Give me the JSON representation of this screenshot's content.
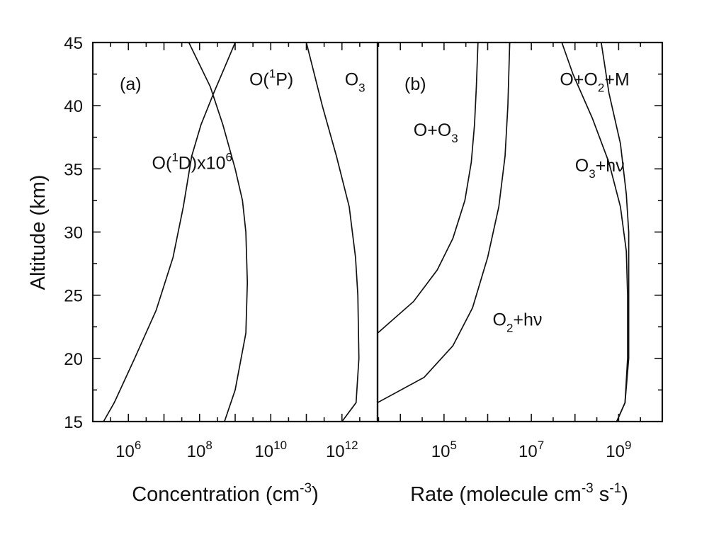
{
  "chart_data": [
    {
      "panel": "(a)",
      "type": "line",
      "xlabel_text": "Concentration  (cm",
      "xlabel_sup": "-3",
      "xlabel_close": ")",
      "ylabel": "Altitude  (km)",
      "xscale": "log",
      "xlim": [
        100000.0,
        10000000000000.0
      ],
      "ylim": [
        15,
        45
      ],
      "yticks": [
        "15",
        "20",
        "25",
        "30",
        "35",
        "40",
        "45"
      ],
      "xticks": [
        {
          "value": 1000000.0,
          "base": "10",
          "exp": "6"
        },
        {
          "value": 100000000.0,
          "base": "10",
          "exp": "8"
        },
        {
          "value": 10000000000.0,
          "base": "10",
          "exp": "10"
        },
        {
          "value": 1000000000000.0,
          "base": "10",
          "exp": "12"
        }
      ],
      "series": [
        {
          "label_parts": [
            "O(",
            "1",
            "D)x10",
            "6"
          ],
          "label_sup": [
            false,
            true,
            false,
            true
          ],
          "label_at": [
            4600000.0,
            35
          ],
          "x": [
            200000.0,
            400000.0,
            1500000.0,
            6000000.0,
            18000000.0,
            35000000.0,
            60000000.0,
            110000000.0,
            250000000.0,
            500000000.0,
            1000000000.0
          ],
          "y": [
            15,
            16.5,
            20,
            23.8,
            28,
            32,
            36,
            38.5,
            41,
            43,
            45
          ]
        },
        {
          "label_parts": [
            "O(",
            "1",
            "P)"
          ],
          "label_sup": [
            false,
            true,
            false
          ],
          "label_at": [
            2500000000.0,
            41.6
          ],
          "x": [
            500000000.0,
            1000000000.0,
            2000000000.0,
            2200000000.0,
            2000000000.0,
            1600000000.0,
            1000000000.0,
            450000000.0,
            200000000.0,
            50000000.0
          ],
          "y": [
            15,
            17.5,
            22,
            26,
            30,
            32.5,
            35,
            38.5,
            41.5,
            45
          ]
        },
        {
          "label_parts": [
            "O",
            "3"
          ],
          "label_sup": [
            false,
            false
          ],
          "label_sub": [
            false,
            true
          ],
          "label_at": [
            1200000000000.0,
            41.6
          ],
          "x": [
            1000000000000.0,
            2500000000000.0,
            3000000000000.0,
            2800000000000.0,
            2400000000000.0,
            1600000000000.0,
            700000000000.0,
            280000000000.0,
            100000000000.0
          ],
          "y": [
            15,
            16.5,
            20,
            25,
            28,
            32,
            36,
            40,
            45
          ]
        }
      ]
    },
    {
      "panel": "(b)",
      "type": "line",
      "xlabel_text": "Rate  (molecule cm",
      "xlabel_sup1": "-3",
      "xlabel_mid": " s",
      "xlabel_sup2": "-1",
      "xlabel_close": ")",
      "xscale": "log",
      "xlim": [
        3000,
        10000000000.0
      ],
      "ylim": [
        15,
        45
      ],
      "xticks": [
        {
          "value": 100000.0,
          "base": "10",
          "exp": "5"
        },
        {
          "value": 10000000.0,
          "base": "10",
          "exp": "7"
        },
        {
          "value": 1000000000.0,
          "base": "10",
          "exp": "9"
        }
      ],
      "series": [
        {
          "label_parts": [
            "O+O",
            "3"
          ],
          "label_sub": [
            false,
            true
          ],
          "label_at": [
            20000.0,
            37.6
          ],
          "x": [
            3000,
            20000.0,
            70000.0,
            160000.0,
            300000.0,
            420000.0,
            500000.0,
            550000.0,
            600000.0
          ],
          "y": [
            22,
            24.5,
            27,
            29.5,
            32.5,
            35.5,
            38.5,
            41.5,
            45
          ]
        },
        {
          "label_parts": [
            "O",
            "2",
            "+h",
            "ν"
          ],
          "label_sub": [
            false,
            true,
            false,
            false
          ],
          "label_at": [
            1300000.0,
            22.6
          ],
          "x": [
            3000,
            35000.0,
            160000.0,
            450000.0,
            1000000.0,
            1800000.0,
            2500000.0,
            2900000.0,
            3200000.0
          ],
          "y": [
            16.5,
            18.5,
            21,
            24,
            28,
            32,
            36,
            40,
            45
          ]
        },
        {
          "label_parts": [
            "O",
            "3",
            "+h",
            "ν"
          ],
          "label_sub": [
            false,
            true,
            false,
            false
          ],
          "label_at": [
            100000000.0,
            34.8
          ],
          "x": [
            900000000.0,
            1400000000.0,
            1600000000.0,
            1600000000.0,
            1500000000.0,
            1100000000.0,
            600000000.0,
            250000000.0,
            90000000.0,
            50000000.0
          ],
          "y": [
            15,
            16.5,
            20,
            25,
            28.5,
            32,
            35.5,
            39,
            42.5,
            45
          ]
        },
        {
          "label_parts": [
            "O+O",
            "2",
            "+M"
          ],
          "label_sub": [
            false,
            true,
            false
          ],
          "label_at": [
            45000000.0,
            41.6
          ],
          "x": [
            900000000.0,
            1400000000.0,
            1700000000.0,
            1700000000.0,
            1700000000.0,
            1500000000.0,
            1100000000.0,
            600000000.0,
            400000000.0
          ],
          "y": [
            15,
            16.5,
            20,
            25,
            30,
            33,
            37,
            41,
            45
          ]
        }
      ]
    }
  ]
}
